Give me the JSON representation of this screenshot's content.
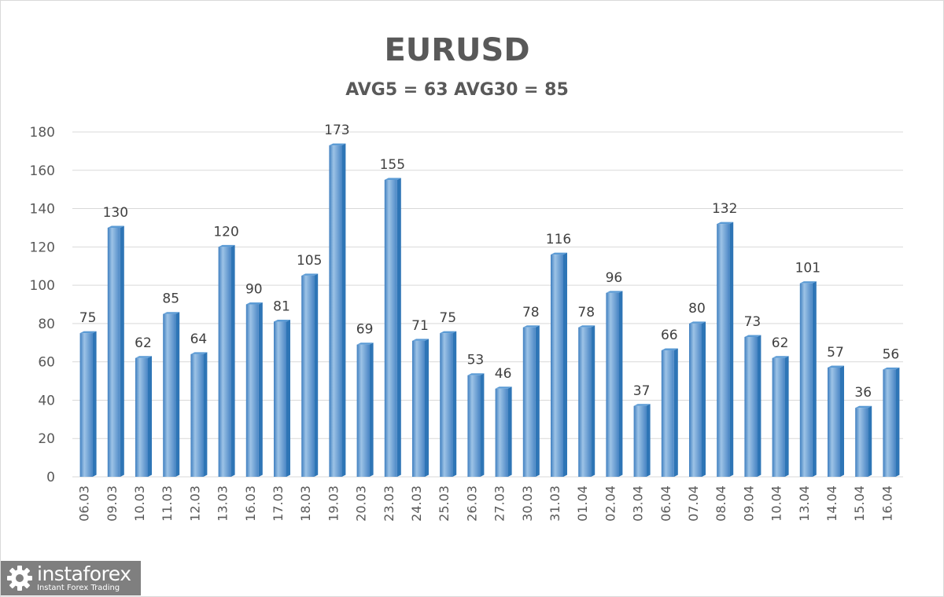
{
  "chart_data": {
    "type": "bar",
    "title": "EURUSD",
    "subtitle": "AVG5 = 63 AVG30 = 85",
    "categories": [
      "06.03",
      "09.03",
      "10.03",
      "11.03",
      "12.03",
      "13.03",
      "16.03",
      "17.03",
      "18.03",
      "19.03",
      "20.03",
      "23.03",
      "24.03",
      "25.03",
      "26.03",
      "27.03",
      "30.03",
      "31.03",
      "01.04",
      "02.04",
      "03.04",
      "06.04",
      "07.04",
      "08.04",
      "09.04",
      "10.04",
      "13.04",
      "14.04",
      "15.04",
      "16.04"
    ],
    "values": [
      75,
      130,
      62,
      85,
      64,
      120,
      90,
      81,
      105,
      173,
      69,
      155,
      71,
      75,
      53,
      46,
      78,
      116,
      78,
      96,
      37,
      66,
      80,
      132,
      73,
      62,
      101,
      57,
      36,
      56
    ],
    "ylim": [
      0,
      180
    ],
    "yticks": [
      0,
      20,
      40,
      60,
      80,
      100,
      120,
      140,
      160,
      180
    ],
    "grid": true,
    "legend": "none",
    "colors": {
      "bar_light": "#9dc3e6",
      "bar_mid": "#5b9bd5",
      "bar_dark": "#2e75b6",
      "grid": "#d9d9d9",
      "text": "#595959"
    }
  },
  "logo": {
    "name": "instaforex",
    "tagline": "Instant Forex Trading"
  }
}
